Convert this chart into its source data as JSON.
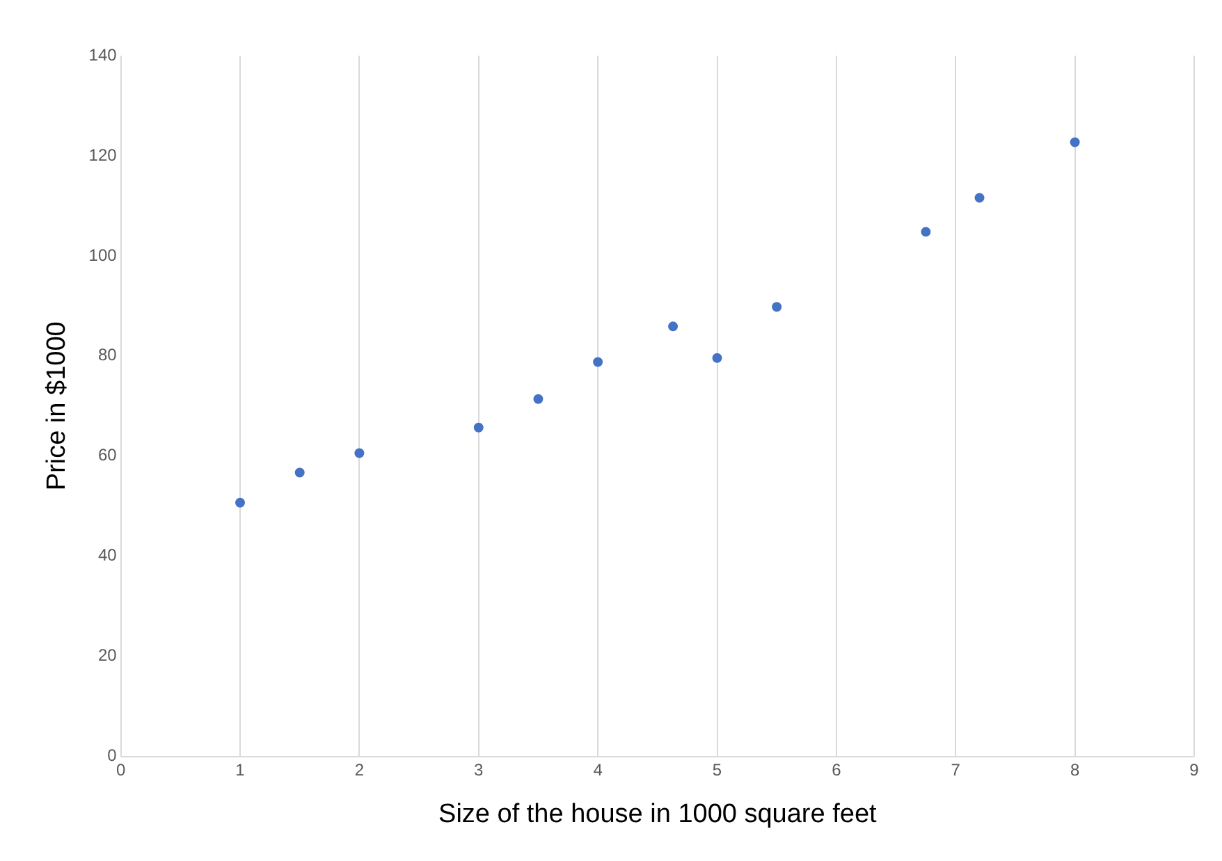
{
  "chart_data": {
    "type": "scatter",
    "xlabel": "Size of the house in 1000 square feet",
    "ylabel": "Price in $1000",
    "x": [
      1,
      1.5,
      2,
      3,
      3.5,
      4,
      4.63,
      5,
      5.5,
      6.75,
      7.2,
      8
    ],
    "values": [
      50.7,
      56.7,
      60.6,
      65.7,
      71.4,
      78.8,
      85.9,
      79.6,
      89.8,
      104.8,
      111.6,
      122.7
    ],
    "color": "#4472c4",
    "marker": "circle",
    "xlim": [
      0,
      9
    ],
    "xticks": [
      0,
      1,
      2,
      3,
      4,
      5,
      6,
      7,
      8,
      9
    ],
    "ylim": [
      0,
      140
    ],
    "yticks": [
      0,
      20,
      40,
      60,
      80,
      100,
      120,
      140
    ],
    "grid": "x",
    "legend": false
  }
}
